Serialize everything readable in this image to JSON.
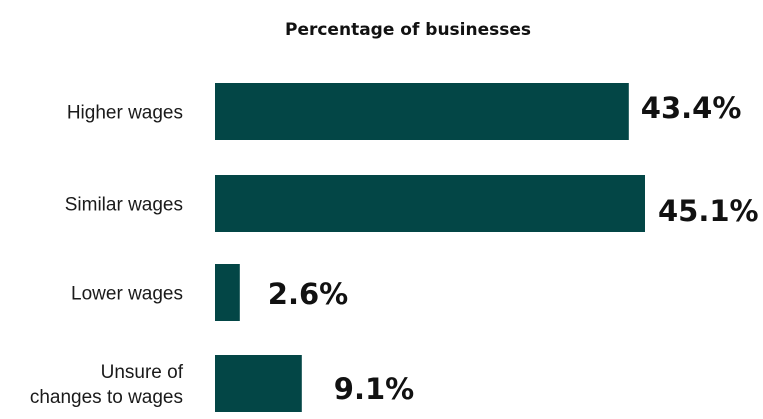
{
  "chart_data": {
    "type": "bar",
    "orientation": "horizontal",
    "title": "Percentage of businesses",
    "xlabel": "",
    "ylabel": "",
    "categories": [
      [
        "Higher wages"
      ],
      [
        "Similar wages"
      ],
      [
        "Lower wages"
      ],
      [
        "Unsure of",
        "changes to wages"
      ]
    ],
    "values": [
      43.4,
      45.1,
      2.6,
      9.1
    ],
    "value_labels": [
      "43.4%",
      "45.1%",
      "2.6%",
      "9.1%"
    ],
    "xlim": [
      0,
      45.1
    ],
    "grid": false,
    "legend": "none",
    "bar_color": "#034646"
  }
}
